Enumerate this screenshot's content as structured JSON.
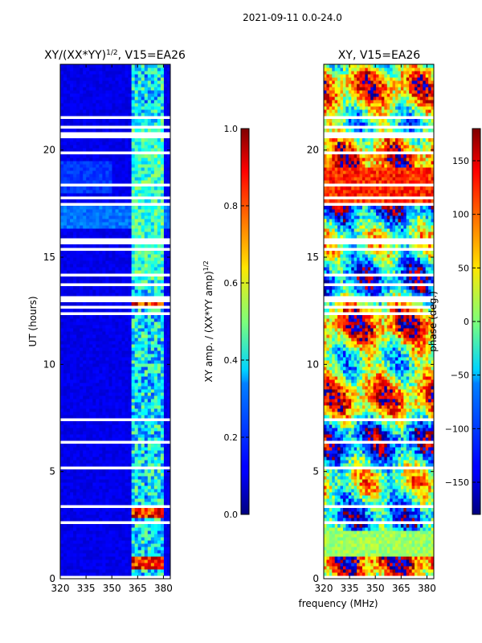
{
  "suptitle": "2021-09-11 0.0-24.0",
  "chart_data": [
    {
      "type": "heatmap",
      "title_main": "XY/(XX*YY)",
      "title_sup": "1/2",
      "title_tail": ", V15=EA26",
      "xlabel": "",
      "ylabel": "UT (hours)",
      "xlim": [
        320,
        384
      ],
      "ylim": [
        0,
        24
      ],
      "xticks": [
        "320",
        "335",
        "350",
        "365",
        "380"
      ],
      "xtick_values": [
        320,
        335,
        350,
        365,
        380
      ],
      "yticks": [
        "0",
        "5",
        "10",
        "15",
        "20"
      ],
      "ytick_values": [
        0,
        5,
        10,
        15,
        20
      ],
      "colorbar": {
        "label": "XY amp. / (XX*YY amp)",
        "label_sup": "1/2",
        "range": [
          0.0,
          1.0
        ],
        "ticks": [
          "0.0",
          "0.2",
          "0.4",
          "0.6",
          "0.8",
          "1.0"
        ],
        "tick_values": [
          0.0,
          0.2,
          0.4,
          0.6,
          0.8,
          1.0
        ]
      },
      "summary": {
        "background_value": 0.08,
        "active_band_mhz": [
          361,
          381
        ],
        "hot_spots_hours": [
          [
            0.5,
            1.0
          ],
          [
            2.9,
            3.5
          ],
          [
            12.7,
            13.1
          ]
        ],
        "hot_spot_value": 0.85
      }
    },
    {
      "type": "heatmap",
      "title": "XY, V15=EA26",
      "xlabel": "frequency (MHz)",
      "ylabel": "",
      "xlim": [
        320,
        384
      ],
      "ylim": [
        0,
        24
      ],
      "xticks": [
        "320",
        "335",
        "350",
        "365",
        "380"
      ],
      "xtick_values": [
        320,
        335,
        350,
        365,
        380
      ],
      "yticks": [
        "0",
        "5",
        "10",
        "15",
        "20"
      ],
      "ytick_values": [
        0,
        5,
        10,
        15,
        20
      ],
      "colorbar": {
        "label": "phase (deg.)",
        "range": [
          -180,
          180
        ],
        "ticks": [
          "−150",
          "−100",
          "−50",
          "0",
          "50",
          "100",
          "150"
        ],
        "tick_values": [
          -150,
          -100,
          -50,
          0,
          50,
          100,
          150
        ]
      }
    }
  ],
  "colors": {
    "jet_dark_blue": "#00007f",
    "blank_rows": "#ffffff"
  }
}
